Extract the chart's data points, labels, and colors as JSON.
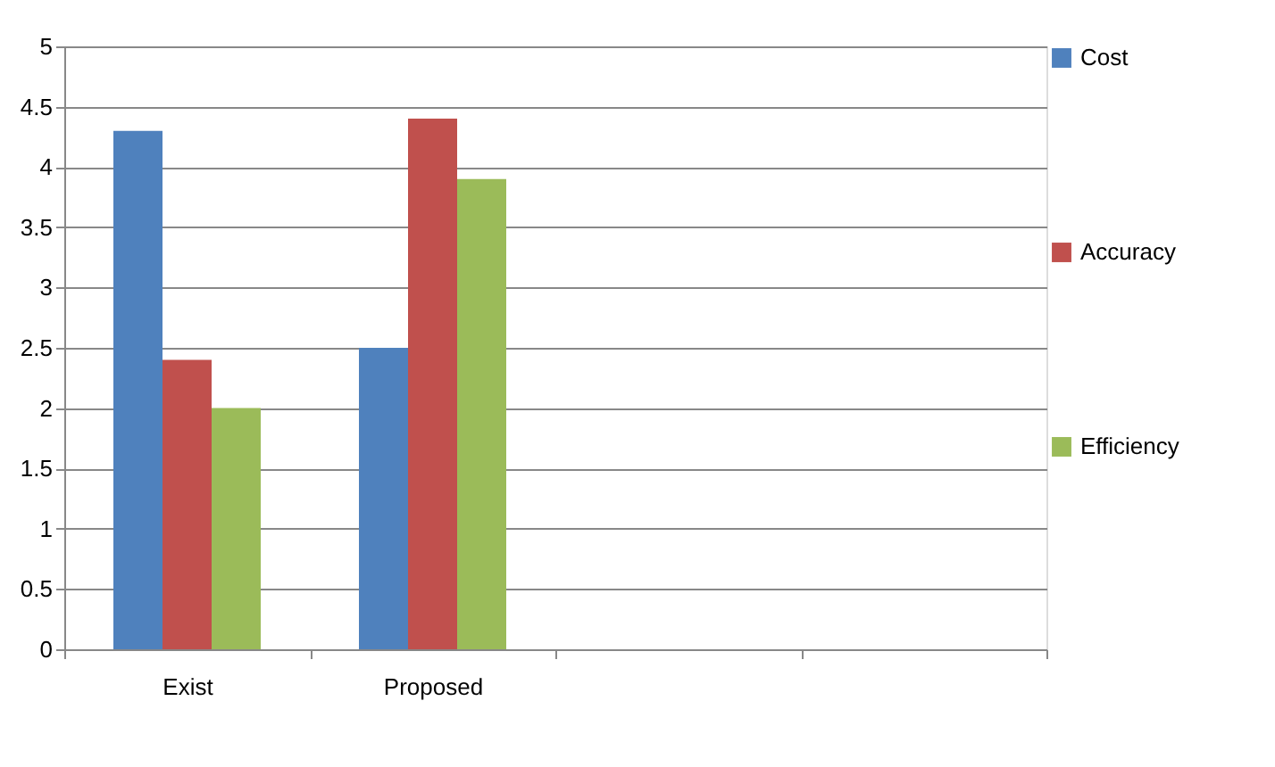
{
  "chart_data": {
    "type": "bar",
    "categories": [
      "Exist",
      "Proposed",
      null,
      null
    ],
    "series": [
      {
        "name": "Cost",
        "color": "#4f81bd",
        "values": [
          4.3,
          2.5,
          null,
          null
        ]
      },
      {
        "name": "Accuracy",
        "color": "#c0504d",
        "values": [
          2.4,
          4.4,
          null,
          null
        ]
      },
      {
        "name": "Efficiency",
        "color": "#9bbb59",
        "values": [
          2.0,
          3.9,
          null,
          null
        ]
      }
    ],
    "ylim": [
      0,
      5
    ],
    "yticks": [
      0,
      0.5,
      1,
      1.5,
      2,
      2.5,
      3,
      3.5,
      4,
      4.5,
      5
    ],
    "grid": "y",
    "legend": "right"
  }
}
